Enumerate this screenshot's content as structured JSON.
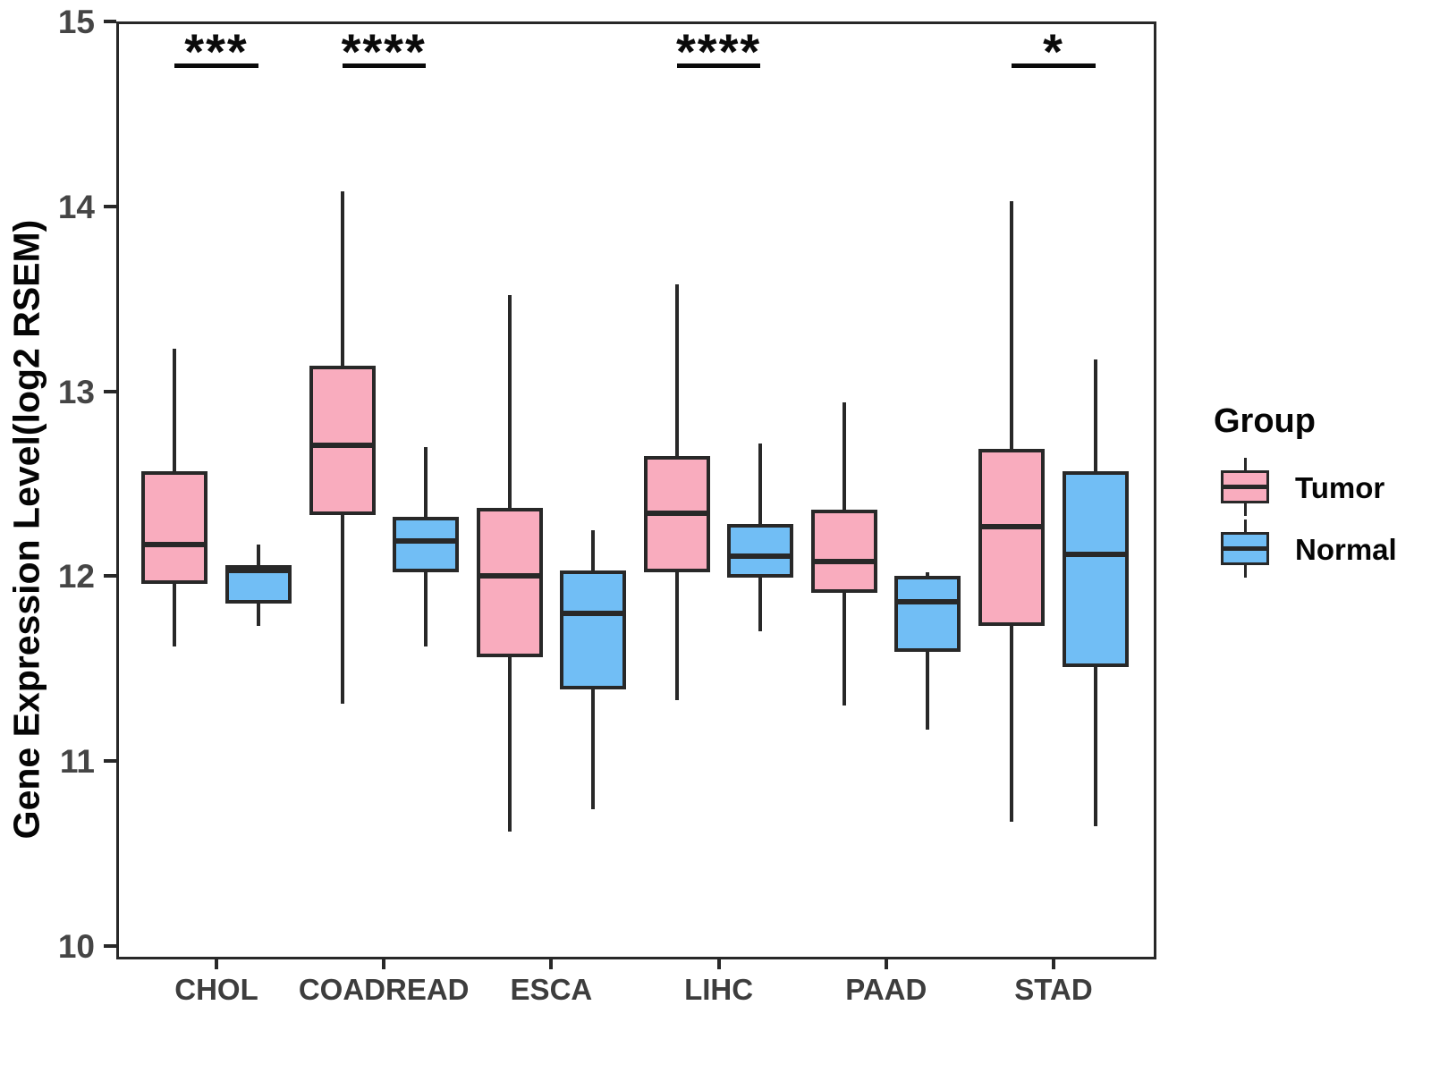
{
  "chart_data": {
    "type": "boxplot",
    "title": "",
    "xlabel": "",
    "ylabel": "Gene Expression Level(log2 RSEM)",
    "ylim": [
      9.94,
      15.0
    ],
    "yticks": [
      10,
      11,
      12,
      13,
      14,
      15
    ],
    "grid": false,
    "categories": [
      "CHOL",
      "COADREAD",
      "ESCA",
      "LIHC",
      "PAAD",
      "STAD"
    ],
    "legend": {
      "title": "Group",
      "position": "right",
      "entries": [
        {
          "label": "Tumor",
          "color": "#F9ACBE"
        },
        {
          "label": "Normal",
          "color": "#71BEF5"
        }
      ]
    },
    "series": [
      {
        "name": "Tumor",
        "color": "#F9ACBE",
        "boxes": [
          {
            "category": "CHOL",
            "min": 11.62,
            "q1": 11.96,
            "median": 12.17,
            "q3": 12.57,
            "max": 13.23
          },
          {
            "category": "COADREAD",
            "min": 11.31,
            "q1": 12.33,
            "median": 12.71,
            "q3": 13.14,
            "max": 14.08
          },
          {
            "category": "ESCA",
            "min": 10.62,
            "q1": 11.56,
            "median": 12.0,
            "q3": 12.37,
            "max": 13.52
          },
          {
            "category": "LIHC",
            "min": 11.33,
            "q1": 12.02,
            "median": 12.34,
            "q3": 12.65,
            "max": 13.58
          },
          {
            "category": "PAAD",
            "min": 11.3,
            "q1": 11.91,
            "median": 12.08,
            "q3": 12.36,
            "max": 12.94
          },
          {
            "category": "STAD",
            "min": 10.67,
            "q1": 11.73,
            "median": 12.27,
            "q3": 12.69,
            "max": 14.03
          }
        ]
      },
      {
        "name": "Normal",
        "color": "#71BEF5",
        "boxes": [
          {
            "category": "CHOL",
            "min": 11.73,
            "q1": 11.85,
            "median": 12.03,
            "q3": 12.06,
            "max": 12.17
          },
          {
            "category": "COADREAD",
            "min": 11.62,
            "q1": 12.02,
            "median": 12.19,
            "q3": 12.32,
            "max": 12.7
          },
          {
            "category": "ESCA",
            "min": 10.74,
            "q1": 11.39,
            "median": 11.8,
            "q3": 12.03,
            "max": 12.25
          },
          {
            "category": "LIHC",
            "min": 11.7,
            "q1": 11.99,
            "median": 12.11,
            "q3": 12.28,
            "max": 12.72
          },
          {
            "category": "PAAD",
            "min": 11.17,
            "q1": 11.59,
            "median": 11.86,
            "q3": 12.0,
            "max": 12.02
          },
          {
            "category": "STAD",
            "min": 10.65,
            "q1": 11.51,
            "median": 12.12,
            "q3": 12.57,
            "max": 13.17
          }
        ]
      }
    ],
    "significance": [
      {
        "category": "CHOL",
        "label": "***"
      },
      {
        "category": "COADREAD",
        "label": "****"
      },
      {
        "category": "LIHC",
        "label": "****"
      },
      {
        "category": "STAD",
        "label": "*"
      }
    ],
    "style": {
      "box_stroke": "#282828",
      "axis_text_color": "#454545",
      "annotation_color": "#0a0a0a",
      "background": "#ffffff"
    }
  }
}
